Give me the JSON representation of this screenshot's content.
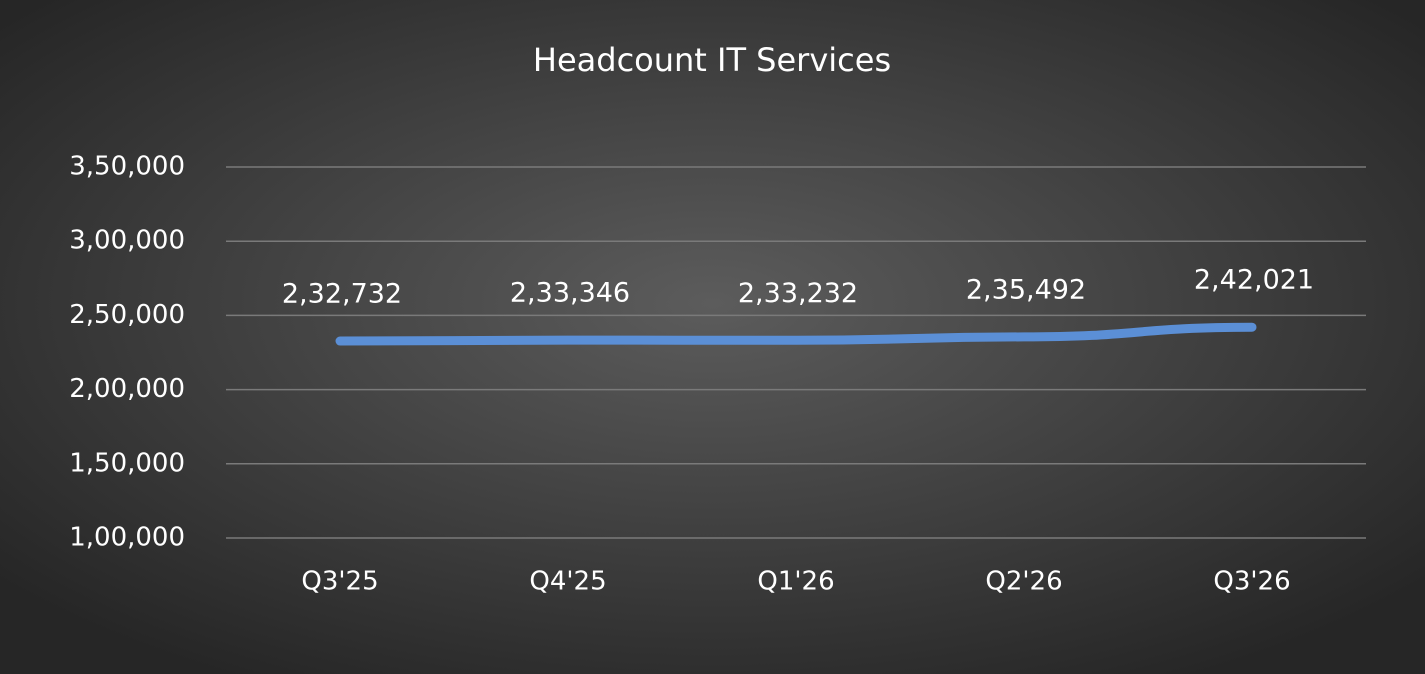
{
  "chart_data": {
    "type": "line",
    "title": "Headcount IT Services",
    "categories": [
      "Q3'25",
      "Q4'25",
      "Q1'26",
      "Q2'26",
      "Q3'26"
    ],
    "values": [
      232732,
      233346,
      233232,
      235492,
      242021
    ],
    "value_labels": [
      "2,32,732",
      "2,33,346",
      "2,33,232",
      "2,35,492",
      "2,42,021"
    ],
    "color": "#5b8fd6",
    "ylim": [
      100000,
      350000
    ],
    "yticks": [
      {
        "value": 100000,
        "label": "1,00,000"
      },
      {
        "value": 150000,
        "label": "1,50,000"
      },
      {
        "value": 200000,
        "label": "2,00,000"
      },
      {
        "value": 250000,
        "label": "2,50,000"
      },
      {
        "value": 300000,
        "label": "3,00,000"
      },
      {
        "value": 350000,
        "label": "3,50,000"
      }
    ],
    "grid": true
  }
}
